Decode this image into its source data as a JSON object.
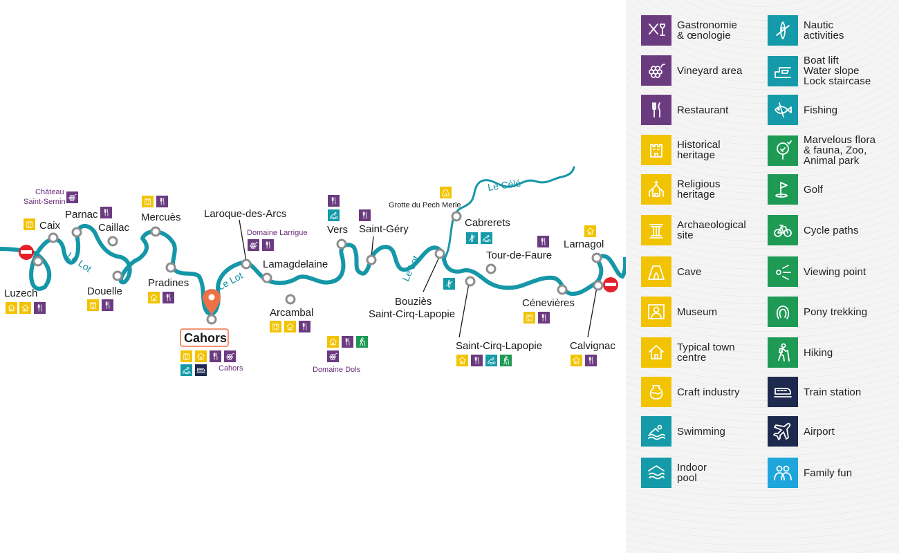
{
  "colors": {
    "river": "#1597a8",
    "gastro": "#6b3b80",
    "heritage": "#f2c300",
    "nautic": "#149aa8",
    "nature": "#1e9a55",
    "transport": "#1d2a4d",
    "family": "#1ea6dc",
    "stop": "#e4202b",
    "pin": "#ef7046",
    "node": "#8e8e8e"
  },
  "map": {
    "river_labels": [
      "Le Lot",
      "Le Lot",
      "Le Lot",
      "Le Célé"
    ],
    "places": {
      "luzech": "Luzech",
      "caix": "Caix",
      "parnac": "Parnac",
      "caillac": "Caillac",
      "douelle": "Douelle",
      "mercues": "Mercuès",
      "pradines": "Pradines",
      "cahors": "Cahors",
      "laroque": "Laroque-des-Arcs",
      "lamagdelaine": "Lamagdelaine",
      "arcambal": "Arcambal",
      "vers": "Vers",
      "saint_gery": "Saint-Géry",
      "bouzies_1": "Bouziès",
      "bouzies_2": "Saint-Cirq-Lapopie",
      "cabrerets": "Cabrerets",
      "tour_de_faure": "Tour-de-Faure",
      "saint_cirq": "Saint-Cirq-Lapopie",
      "cenevieres": "Cénevières",
      "larnagol": "Larnagol",
      "calvignac": "Calvignac"
    },
    "sites": {
      "chateau_1": "Château",
      "chateau_2": "Saint-Sernin",
      "domaine_larrigue": "Domaine Larrigue",
      "domaine_dols": "Domaine Dols",
      "cahors_small": "Cahors",
      "grotte": "Grotte du Pech Merle"
    }
  },
  "legend": [
    {
      "label": "Gastronomie\n& œnologie",
      "icon": "gastronomy-icon",
      "color": "#6b3b80"
    },
    {
      "label": "Vineyard area",
      "icon": "grapes-icon",
      "color": "#6b3b80"
    },
    {
      "label": "Restaurant",
      "icon": "cutlery-icon",
      "color": "#6b3b80"
    },
    {
      "label": "Historical\nheritage",
      "icon": "castle-icon",
      "color": "#f2c300"
    },
    {
      "label": "Religious\nheritage",
      "icon": "church-icon",
      "color": "#f2c300"
    },
    {
      "label": "Archaeological\nsite",
      "icon": "column-icon",
      "color": "#f2c300"
    },
    {
      "label": "Cave",
      "icon": "cave-icon",
      "color": "#f2c300"
    },
    {
      "label": "Museum",
      "icon": "museum-icon",
      "color": "#f2c300"
    },
    {
      "label": "Typical town\ncentre",
      "icon": "house-icon",
      "color": "#f2c300"
    },
    {
      "label": "Craft industry",
      "icon": "pot-icon",
      "color": "#f2c300"
    },
    {
      "label": "Swimming",
      "icon": "swimmer-icon",
      "color": "#149aa8"
    },
    {
      "label": "Indoor\npool",
      "icon": "indoor-pool-icon",
      "color": "#149aa8"
    },
    {
      "label": "Nautic\nactivities",
      "icon": "kayak-icon",
      "color": "#149aa8"
    },
    {
      "label": "Boat lift\nWater slope\nLock staircase",
      "icon": "boat-lift-icon",
      "color": "#149aa8"
    },
    {
      "label": "Fishing",
      "icon": "fish-icon",
      "color": "#149aa8"
    },
    {
      "label": "Marvelous flora\n& fauna, Zoo,\nAnimal park",
      "icon": "tree-icon",
      "color": "#1e9a55"
    },
    {
      "label": "Golf",
      "icon": "golf-flag-icon",
      "color": "#1e9a55"
    },
    {
      "label": "Cycle paths",
      "icon": "bicycle-icon",
      "color": "#1e9a55"
    },
    {
      "label": "Viewing point",
      "icon": "viewpoint-icon",
      "color": "#1e9a55"
    },
    {
      "label": "Pony trekking",
      "icon": "horseshoe-icon",
      "color": "#1e9a55"
    },
    {
      "label": "Hiking",
      "icon": "hiker-icon",
      "color": "#1e9a55"
    },
    {
      "label": "Train station",
      "icon": "train-icon",
      "color": "#1d2a4d"
    },
    {
      "label": "Airport",
      "icon": "airplane-icon",
      "color": "#1d2a4d"
    },
    {
      "label": "Family fun",
      "icon": "family-icon",
      "color": "#1ea6dc"
    }
  ]
}
